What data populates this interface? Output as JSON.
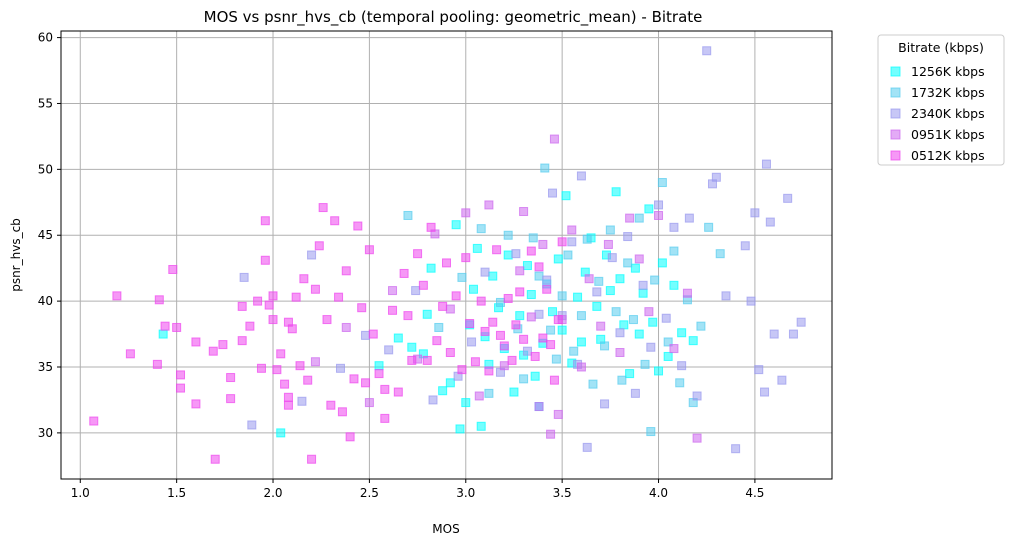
{
  "chart_data": {
    "type": "scatter",
    "title": "MOS vs psnr_hvs_cb (temporal pooling: geometric_mean) - Bitrate",
    "xlabel": "MOS",
    "ylabel": "psnr_hvs_cb",
    "xlim": [
      0.9,
      4.9
    ],
    "ylim": [
      26.5,
      60.5
    ],
    "xticks": [
      1.0,
      1.5,
      2.0,
      2.5,
      3.0,
      3.5,
      4.0,
      4.5
    ],
    "xtick_labels": [
      "1.0",
      "1.5",
      "2.0",
      "2.5",
      "3.0",
      "3.5",
      "4.0",
      "4.5"
    ],
    "yticks": [
      30,
      35,
      40,
      45,
      50,
      55,
      60
    ],
    "ytick_labels": [
      "30",
      "35",
      "40",
      "45",
      "50",
      "55",
      "60"
    ],
    "grid": true,
    "marker": "square",
    "legend": {
      "title": "Bitrate (kbps)",
      "placement": "outside-top-right"
    },
    "series": [
      {
        "name": "1256K kbps",
        "color": "#00ffff",
        "points": [
          [
            1.43,
            37.5
          ],
          [
            2.04,
            30.0
          ],
          [
            2.55,
            35.1
          ],
          [
            2.65,
            37.2
          ],
          [
            2.72,
            36.5
          ],
          [
            2.78,
            36.0
          ],
          [
            2.8,
            39.0
          ],
          [
            2.82,
            42.5
          ],
          [
            2.88,
            33.2
          ],
          [
            2.92,
            33.8
          ],
          [
            2.95,
            45.8
          ],
          [
            2.97,
            30.3
          ],
          [
            3.0,
            32.3
          ],
          [
            3.02,
            38.2
          ],
          [
            3.04,
            40.9
          ],
          [
            3.06,
            44.0
          ],
          [
            3.08,
            30.5
          ],
          [
            3.1,
            37.3
          ],
          [
            3.12,
            35.2
          ],
          [
            3.14,
            41.9
          ],
          [
            3.17,
            39.5
          ],
          [
            3.2,
            36.4
          ],
          [
            3.22,
            43.5
          ],
          [
            3.25,
            33.1
          ],
          [
            3.28,
            38.9
          ],
          [
            3.3,
            35.9
          ],
          [
            3.32,
            42.7
          ],
          [
            3.34,
            40.5
          ],
          [
            3.36,
            34.3
          ],
          [
            3.38,
            32.0
          ],
          [
            3.4,
            36.8
          ],
          [
            3.42,
            41.3
          ],
          [
            3.45,
            39.2
          ],
          [
            3.48,
            43.2
          ],
          [
            3.5,
            37.8
          ],
          [
            3.52,
            48.0
          ],
          [
            3.55,
            35.3
          ],
          [
            3.58,
            40.3
          ],
          [
            3.6,
            36.9
          ],
          [
            3.62,
            42.2
          ],
          [
            3.65,
            44.8
          ],
          [
            3.68,
            39.6
          ],
          [
            3.7,
            37.1
          ],
          [
            3.73,
            43.5
          ],
          [
            3.75,
            40.8
          ],
          [
            3.78,
            48.3
          ],
          [
            3.8,
            41.7
          ],
          [
            3.82,
            38.2
          ],
          [
            3.85,
            34.5
          ],
          [
            3.88,
            42.5
          ],
          [
            3.9,
            37.5
          ],
          [
            3.92,
            40.6
          ],
          [
            3.95,
            47.0
          ],
          [
            3.97,
            38.4
          ],
          [
            4.0,
            34.7
          ],
          [
            4.02,
            42.9
          ],
          [
            4.05,
            35.8
          ],
          [
            4.08,
            41.2
          ],
          [
            4.12,
            37.6
          ],
          [
            4.18,
            37.0
          ]
        ]
      },
      {
        "name": "1732K kbps",
        "color": "#55ccee",
        "points": [
          [
            2.7,
            46.5
          ],
          [
            2.86,
            38.0
          ],
          [
            2.98,
            41.8
          ],
          [
            3.08,
            45.5
          ],
          [
            3.12,
            33.0
          ],
          [
            3.18,
            39.9
          ],
          [
            3.22,
            45.0
          ],
          [
            3.27,
            37.9
          ],
          [
            3.3,
            34.1
          ],
          [
            3.35,
            44.8
          ],
          [
            3.38,
            41.9
          ],
          [
            3.41,
            50.1
          ],
          [
            3.44,
            37.8
          ],
          [
            3.47,
            35.6
          ],
          [
            3.5,
            40.4
          ],
          [
            3.53,
            43.5
          ],
          [
            3.56,
            36.2
          ],
          [
            3.6,
            38.9
          ],
          [
            3.63,
            44.7
          ],
          [
            3.66,
            33.7
          ],
          [
            3.69,
            41.5
          ],
          [
            3.72,
            36.6
          ],
          [
            3.75,
            45.4
          ],
          [
            3.78,
            39.2
          ],
          [
            3.81,
            34.0
          ],
          [
            3.84,
            42.9
          ],
          [
            3.87,
            38.6
          ],
          [
            3.9,
            46.3
          ],
          [
            3.93,
            35.2
          ],
          [
            3.96,
            30.1
          ],
          [
            3.98,
            41.6
          ],
          [
            4.02,
            49.0
          ],
          [
            4.05,
            36.9
          ],
          [
            4.08,
            43.8
          ],
          [
            4.11,
            33.8
          ],
          [
            4.15,
            40.1
          ],
          [
            4.18,
            32.3
          ],
          [
            4.22,
            38.1
          ],
          [
            4.26,
            45.6
          ],
          [
            4.32,
            43.6
          ]
        ]
      },
      {
        "name": "2340K kbps",
        "color": "#9999ee",
        "points": [
          [
            1.85,
            41.8
          ],
          [
            1.89,
            30.6
          ],
          [
            2.15,
            32.4
          ],
          [
            2.2,
            43.5
          ],
          [
            2.35,
            34.9
          ],
          [
            2.48,
            37.4
          ],
          [
            2.6,
            36.3
          ],
          [
            2.74,
            40.8
          ],
          [
            2.83,
            32.5
          ],
          [
            2.96,
            34.3
          ],
          [
            3.03,
            36.9
          ],
          [
            3.1,
            42.2
          ],
          [
            3.18,
            34.6
          ],
          [
            3.26,
            43.6
          ],
          [
            3.32,
            36.2
          ],
          [
            3.38,
            39.0
          ],
          [
            3.42,
            41.6
          ],
          [
            3.45,
            48.2
          ],
          [
            3.5,
            38.9
          ],
          [
            3.55,
            44.5
          ],
          [
            3.58,
            35.2
          ],
          [
            3.6,
            49.5
          ],
          [
            3.63,
            28.9
          ],
          [
            3.68,
            40.7
          ],
          [
            3.72,
            32.2
          ],
          [
            3.76,
            43.3
          ],
          [
            3.8,
            37.6
          ],
          [
            3.84,
            44.9
          ],
          [
            3.88,
            33.0
          ],
          [
            3.92,
            41.2
          ],
          [
            3.96,
            36.5
          ],
          [
            4.0,
            47.3
          ],
          [
            4.04,
            38.7
          ],
          [
            4.08,
            45.6
          ],
          [
            4.12,
            35.1
          ],
          [
            4.16,
            46.3
          ],
          [
            4.2,
            32.8
          ],
          [
            4.25,
            59.0
          ],
          [
            4.28,
            48.9
          ],
          [
            4.3,
            49.4
          ],
          [
            4.35,
            40.4
          ],
          [
            4.4,
            28.8
          ],
          [
            4.45,
            44.2
          ],
          [
            4.48,
            40.0
          ],
          [
            4.5,
            46.7
          ],
          [
            4.52,
            34.8
          ],
          [
            4.55,
            33.1
          ],
          [
            4.56,
            50.4
          ],
          [
            4.58,
            46.0
          ],
          [
            4.6,
            37.5
          ],
          [
            4.64,
            34.0
          ],
          [
            4.67,
            47.8
          ],
          [
            4.7,
            37.5
          ],
          [
            4.74,
            38.4
          ]
        ]
      },
      {
        "name": "0951K kbps",
        "color": "#cc66ee",
        "points": [
          [
            2.22,
            35.4
          ],
          [
            2.38,
            38.0
          ],
          [
            2.5,
            32.3
          ],
          [
            2.62,
            40.8
          ],
          [
            2.75,
            35.6
          ],
          [
            2.84,
            45.1
          ],
          [
            2.92,
            39.4
          ],
          [
            3.0,
            46.7
          ],
          [
            3.07,
            32.8
          ],
          [
            3.12,
            47.3
          ],
          [
            3.2,
            35.1
          ],
          [
            3.28,
            42.3
          ],
          [
            3.3,
            46.8
          ],
          [
            3.34,
            38.8
          ],
          [
            3.38,
            32.0
          ],
          [
            3.4,
            44.3
          ],
          [
            3.44,
            29.9
          ],
          [
            3.46,
            52.3
          ],
          [
            3.48,
            31.4
          ],
          [
            3.5,
            38.6
          ],
          [
            3.55,
            45.4
          ],
          [
            3.6,
            35.0
          ],
          [
            3.64,
            41.7
          ],
          [
            3.7,
            38.1
          ],
          [
            3.74,
            44.3
          ],
          [
            3.8,
            36.1
          ],
          [
            3.85,
            46.3
          ],
          [
            3.9,
            43.2
          ],
          [
            3.95,
            39.2
          ],
          [
            4.0,
            46.5
          ],
          [
            4.08,
            36.4
          ],
          [
            4.15,
            40.6
          ],
          [
            4.2,
            29.6
          ]
        ]
      },
      {
        "name": "0512K kbps",
        "color": "#ee44ee",
        "points": [
          [
            1.07,
            30.9
          ],
          [
            1.19,
            40.4
          ],
          [
            1.26,
            36.0
          ],
          [
            1.4,
            35.2
          ],
          [
            1.41,
            40.1
          ],
          [
            1.44,
            38.1
          ],
          [
            1.48,
            42.4
          ],
          [
            1.5,
            38.0
          ],
          [
            1.52,
            34.4
          ],
          [
            1.52,
            33.4
          ],
          [
            1.6,
            36.9
          ],
          [
            1.6,
            32.2
          ],
          [
            1.69,
            36.2
          ],
          [
            1.7,
            28.0
          ],
          [
            1.74,
            36.7
          ],
          [
            1.78,
            34.2
          ],
          [
            1.78,
            32.6
          ],
          [
            1.84,
            37.0
          ],
          [
            1.84,
            39.6
          ],
          [
            1.88,
            38.1
          ],
          [
            1.92,
            40.0
          ],
          [
            1.94,
            34.9
          ],
          [
            1.96,
            46.1
          ],
          [
            1.96,
            43.1
          ],
          [
            1.98,
            39.7
          ],
          [
            2.0,
            40.4
          ],
          [
            2.0,
            38.6
          ],
          [
            2.02,
            34.8
          ],
          [
            2.04,
            36.0
          ],
          [
            2.06,
            33.7
          ],
          [
            2.08,
            38.4
          ],
          [
            2.08,
            32.1
          ],
          [
            2.08,
            32.7
          ],
          [
            2.1,
            37.9
          ],
          [
            2.12,
            40.3
          ],
          [
            2.14,
            35.1
          ],
          [
            2.16,
            41.7
          ],
          [
            2.18,
            34.0
          ],
          [
            2.2,
            28.0
          ],
          [
            2.22,
            40.9
          ],
          [
            2.24,
            44.2
          ],
          [
            2.26,
            47.1
          ],
          [
            2.28,
            38.6
          ],
          [
            2.3,
            32.1
          ],
          [
            2.32,
            46.1
          ],
          [
            2.34,
            40.3
          ],
          [
            2.36,
            31.6
          ],
          [
            2.38,
            42.3
          ],
          [
            2.4,
            29.7
          ],
          [
            2.42,
            34.1
          ],
          [
            2.44,
            45.7
          ],
          [
            2.46,
            39.5
          ],
          [
            2.48,
            33.8
          ],
          [
            2.5,
            43.9
          ],
          [
            2.52,
            37.5
          ],
          [
            2.55,
            34.5
          ],
          [
            2.58,
            33.3
          ],
          [
            2.58,
            31.1
          ],
          [
            2.62,
            39.3
          ],
          [
            2.65,
            33.1
          ],
          [
            2.68,
            42.1
          ],
          [
            2.7,
            38.9
          ],
          [
            2.72,
            35.5
          ],
          [
            2.75,
            43.6
          ],
          [
            2.78,
            41.2
          ],
          [
            2.8,
            35.5
          ],
          [
            2.82,
            45.6
          ],
          [
            2.85,
            37.0
          ],
          [
            2.88,
            39.6
          ],
          [
            2.9,
            42.9
          ],
          [
            2.92,
            36.1
          ],
          [
            2.95,
            40.4
          ],
          [
            2.98,
            34.8
          ],
          [
            3.0,
            43.3
          ],
          [
            3.02,
            38.3
          ],
          [
            3.05,
            35.4
          ],
          [
            3.08,
            40.0
          ],
          [
            3.1,
            37.7
          ],
          [
            3.12,
            34.7
          ],
          [
            3.14,
            38.4
          ],
          [
            3.16,
            43.9
          ],
          [
            3.18,
            37.4
          ],
          [
            3.2,
            36.6
          ],
          [
            3.22,
            40.2
          ],
          [
            3.24,
            35.5
          ],
          [
            3.26,
            38.2
          ],
          [
            3.28,
            40.7
          ],
          [
            3.3,
            37.1
          ],
          [
            3.34,
            43.8
          ],
          [
            3.36,
            35.8
          ],
          [
            3.38,
            42.6
          ],
          [
            3.4,
            37.2
          ],
          [
            3.42,
            40.9
          ],
          [
            3.44,
            36.7
          ],
          [
            3.46,
            34.0
          ],
          [
            3.48,
            38.6
          ],
          [
            3.5,
            44.5
          ]
        ]
      }
    ]
  }
}
